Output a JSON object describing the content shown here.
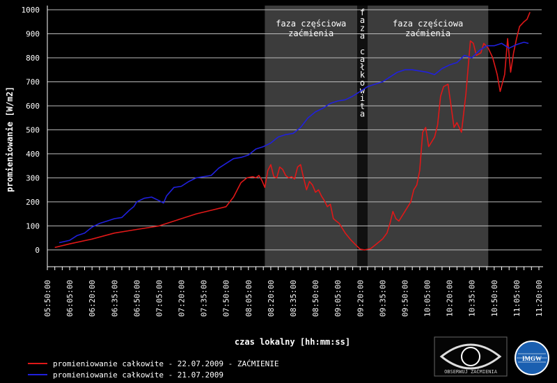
{
  "chart_data": {
    "type": "line",
    "xlabel": "czas lokalny [hh:mm:ss]",
    "ylabel": "promieniowanie [W/m2]",
    "ylim": [
      0,
      1000
    ],
    "yticks": [
      0,
      100,
      200,
      300,
      400,
      500,
      600,
      700,
      800,
      900,
      1000
    ],
    "xlim": [
      "05:50:00",
      "11:20:00"
    ],
    "xtick_labels": [
      "05:50:00",
      "06:05:00",
      "06:20:00",
      "06:35:00",
      "06:50:00",
      "07:05:00",
      "07:20:00",
      "07:35:00",
      "07:50:00",
      "08:05:00",
      "08:20:00",
      "08:35:00",
      "08:50:00",
      "09:05:00",
      "09:20:00",
      "09:35:00",
      "09:50:00",
      "10:05:00",
      "10:20:00",
      "10:35:00",
      "10:50:00",
      "11:05:00",
      "11:20:00"
    ],
    "grid": "horizontal",
    "legend_position": "bottom-left",
    "shaded_regions": [
      {
        "start": "08:16:00",
        "end": "09:18:00",
        "label": [
          "faza częściowa",
          "zaćmienia"
        ],
        "color": "#3c3c3c"
      },
      {
        "start": "09:18:00",
        "end": "09:25:00",
        "label": "faza całkowita",
        "color": "#101010"
      },
      {
        "start": "09:25:00",
        "end": "10:46:00",
        "label": [
          "faza częściowa",
          "zaćmienia"
        ],
        "color": "#3c3c3c"
      }
    ],
    "series": [
      {
        "name": "promieniowanie całkowite - 22.07.2009 - ZAĆMIENIE",
        "color": "#e01818",
        "points": [
          [
            "05:55:00",
            10
          ],
          [
            "06:05:00",
            25
          ],
          [
            "06:20:00",
            45
          ],
          [
            "06:35:00",
            70
          ],
          [
            "06:50:00",
            85
          ],
          [
            "07:05:00",
            100
          ],
          [
            "07:20:00",
            130
          ],
          [
            "07:30:00",
            150
          ],
          [
            "07:40:00",
            165
          ],
          [
            "07:50:00",
            180
          ],
          [
            "07:55:00",
            220
          ],
          [
            "08:00:00",
            280
          ],
          [
            "08:04:00",
            300
          ],
          [
            "08:08:00",
            305
          ],
          [
            "08:10:00",
            300
          ],
          [
            "08:12:00",
            310
          ],
          [
            "08:14:00",
            290
          ],
          [
            "08:16:00",
            260
          ],
          [
            "08:18:00",
            330
          ],
          [
            "08:20:00",
            355
          ],
          [
            "08:22:00",
            305
          ],
          [
            "08:24:00",
            300
          ],
          [
            "08:26:00",
            345
          ],
          [
            "08:28:00",
            335
          ],
          [
            "08:30:00",
            310
          ],
          [
            "08:32:00",
            300
          ],
          [
            "08:34:00",
            305
          ],
          [
            "08:36:00",
            295
          ],
          [
            "08:38:00",
            345
          ],
          [
            "08:40:00",
            355
          ],
          [
            "08:42:00",
            300
          ],
          [
            "08:44:00",
            250
          ],
          [
            "08:46:00",
            285
          ],
          [
            "08:48:00",
            270
          ],
          [
            "08:50:00",
            240
          ],
          [
            "08:52:00",
            250
          ],
          [
            "08:54:00",
            225
          ],
          [
            "08:56:00",
            205
          ],
          [
            "08:58:00",
            180
          ],
          [
            "09:00:00",
            190
          ],
          [
            "09:02:00",
            130
          ],
          [
            "09:04:00",
            120
          ],
          [
            "09:06:00",
            110
          ],
          [
            "09:08:00",
            90
          ],
          [
            "09:10:00",
            70
          ],
          [
            "09:14:00",
            40
          ],
          [
            "09:18:00",
            15
          ],
          [
            "09:20:00",
            3
          ],
          [
            "09:23:00",
            0
          ],
          [
            "09:27:00",
            5
          ],
          [
            "09:30:00",
            20
          ],
          [
            "09:35:00",
            45
          ],
          [
            "09:38:00",
            70
          ],
          [
            "09:40:00",
            110
          ],
          [
            "09:42:00",
            160
          ],
          [
            "09:44:00",
            130
          ],
          [
            "09:46:00",
            120
          ],
          [
            "09:48:00",
            140
          ],
          [
            "09:50:00",
            160
          ],
          [
            "09:52:00",
            180
          ],
          [
            "09:54:00",
            200
          ],
          [
            "09:56:00",
            250
          ],
          [
            "09:58:00",
            270
          ],
          [
            "10:00:00",
            330
          ],
          [
            "10:02:00",
            490
          ],
          [
            "10:04:00",
            510
          ],
          [
            "10:06:00",
            430
          ],
          [
            "10:08:00",
            450
          ],
          [
            "10:10:00",
            470
          ],
          [
            "10:12:00",
            520
          ],
          [
            "10:14:00",
            640
          ],
          [
            "10:16:00",
            680
          ],
          [
            "10:19:00",
            690
          ],
          [
            "10:21:00",
            600
          ],
          [
            "10:23:00",
            510
          ],
          [
            "10:25:00",
            530
          ],
          [
            "10:28:00",
            490
          ],
          [
            "10:31:00",
            650
          ],
          [
            "10:34:00",
            870
          ],
          [
            "10:36:00",
            860
          ],
          [
            "10:38:00",
            810
          ],
          [
            "10:41:00",
            820
          ],
          [
            "10:43:00",
            860
          ],
          [
            "10:46:00",
            840
          ],
          [
            "10:49:00",
            800
          ],
          [
            "10:52:00",
            730
          ],
          [
            "10:54:00",
            660
          ],
          [
            "10:57:00",
            730
          ],
          [
            "10:59:00",
            880
          ],
          [
            "11:01:00",
            740
          ],
          [
            "11:03:00",
            820
          ],
          [
            "11:05:00",
            880
          ],
          [
            "11:07:00",
            930
          ],
          [
            "11:10:00",
            950
          ],
          [
            "11:12:00",
            960
          ],
          [
            "11:14:00",
            990
          ]
        ]
      },
      {
        "name": "promieniowanie całkowite - 21.07.2009",
        "color": "#2020dd",
        "points": [
          [
            "05:58:00",
            30
          ],
          [
            "06:05:00",
            40
          ],
          [
            "06:10:00",
            60
          ],
          [
            "06:15:00",
            70
          ],
          [
            "06:20:00",
            95
          ],
          [
            "06:25:00",
            110
          ],
          [
            "06:30:00",
            120
          ],
          [
            "06:35:00",
            130
          ],
          [
            "06:40:00",
            135
          ],
          [
            "06:45:00",
            165
          ],
          [
            "06:48:00",
            180
          ],
          [
            "06:50:00",
            200
          ],
          [
            "06:55:00",
            215
          ],
          [
            "07:00:00",
            220
          ],
          [
            "07:05:00",
            205
          ],
          [
            "07:08:00",
            195
          ],
          [
            "07:10:00",
            225
          ],
          [
            "07:15:00",
            260
          ],
          [
            "07:20:00",
            265
          ],
          [
            "07:25:00",
            285
          ],
          [
            "07:30:00",
            300
          ],
          [
            "07:35:00",
            305
          ],
          [
            "07:40:00",
            310
          ],
          [
            "07:45:00",
            340
          ],
          [
            "07:50:00",
            360
          ],
          [
            "07:55:00",
            380
          ],
          [
            "08:00:00",
            385
          ],
          [
            "08:05:00",
            395
          ],
          [
            "08:10:00",
            420
          ],
          [
            "08:15:00",
            430
          ],
          [
            "08:20:00",
            445
          ],
          [
            "08:25:00",
            470
          ],
          [
            "08:30:00",
            480
          ],
          [
            "08:35:00",
            485
          ],
          [
            "08:40:00",
            510
          ],
          [
            "08:45:00",
            550
          ],
          [
            "08:50:00",
            575
          ],
          [
            "08:55:00",
            590
          ],
          [
            "09:00:00",
            610
          ],
          [
            "09:05:00",
            620
          ],
          [
            "09:10:00",
            625
          ],
          [
            "09:15:00",
            640
          ],
          [
            "09:20:00",
            660
          ],
          [
            "09:25:00",
            680
          ],
          [
            "09:30:00",
            690
          ],
          [
            "09:35:00",
            700
          ],
          [
            "09:40:00",
            720
          ],
          [
            "09:45:00",
            740
          ],
          [
            "09:50:00",
            750
          ],
          [
            "09:55:00",
            750
          ],
          [
            "10:00:00",
            745
          ],
          [
            "10:05:00",
            740
          ],
          [
            "10:10:00",
            730
          ],
          [
            "10:15:00",
            755
          ],
          [
            "10:20:00",
            770
          ],
          [
            "10:25:00",
            780
          ],
          [
            "10:30:00",
            810
          ],
          [
            "10:35:00",
            800
          ],
          [
            "10:40:00",
            830
          ],
          [
            "10:45:00",
            850
          ],
          [
            "10:50:00",
            850
          ],
          [
            "10:55:00",
            860
          ],
          [
            "11:00:00",
            840
          ],
          [
            "11:05:00",
            855
          ],
          [
            "11:10:00",
            865
          ],
          [
            "11:13:00",
            860
          ]
        ]
      }
    ]
  },
  "logos": {
    "eye_logo_text": "OBSERWUJ ZAĆMIENIA",
    "imgw_text": "IMGW"
  }
}
